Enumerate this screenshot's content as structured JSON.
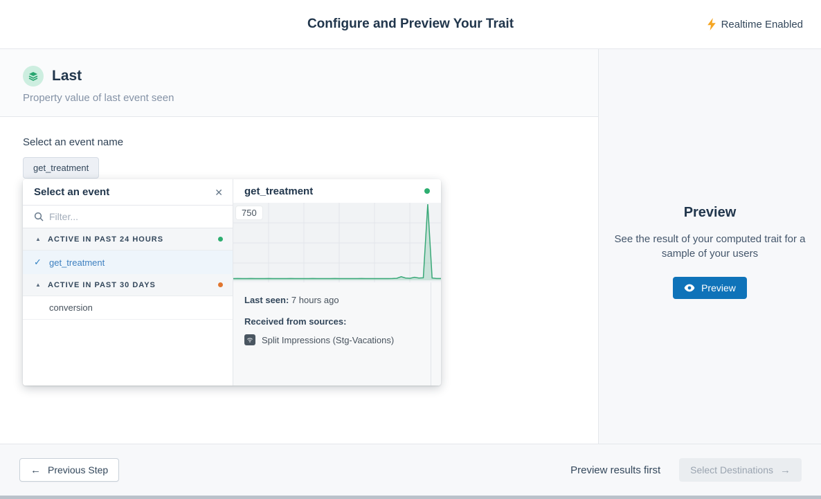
{
  "header": {
    "title": "Configure and Preview Your Trait",
    "realtime_label": "Realtime Enabled"
  },
  "trait": {
    "name": "Last",
    "description": "Property value of last event seen"
  },
  "event_select": {
    "label": "Select an event name",
    "selected_chip": "get_treatment"
  },
  "dropdown": {
    "title": "Select an event",
    "filter_placeholder": "Filter...",
    "groups": [
      {
        "label": "ACTIVE IN PAST 24 HOURS",
        "dot_color": "#2dae70",
        "items": [
          {
            "label": "get_treatment",
            "selected": true
          }
        ]
      },
      {
        "label": "ACTIVE IN PAST 30 DAYS",
        "dot_color": "#e0762f",
        "items": [
          {
            "label": "conversion",
            "selected": false
          }
        ]
      }
    ]
  },
  "detail": {
    "title": "get_treatment",
    "status_dot_color": "#2dae70",
    "y_max_label": "750",
    "last_seen_label": "Last seen:",
    "last_seen_value": " 7 hours ago",
    "sources_label": "Received from sources:",
    "source_name": "Split Impressions (Stg-Vacations)"
  },
  "chart_data": {
    "type": "area",
    "title": "get_treatment recent event volume",
    "series": [
      {
        "name": "get_treatment",
        "values": [
          5,
          6,
          5,
          5,
          6,
          5,
          5,
          5,
          6,
          5,
          5,
          5,
          5,
          6,
          5,
          5,
          5,
          5,
          6,
          5,
          5,
          5,
          5,
          6,
          5,
          5,
          5,
          5,
          5,
          6,
          5,
          5,
          5,
          5,
          5,
          5,
          6,
          8,
          30,
          12,
          8,
          22,
          12,
          15,
          1000,
          12,
          6,
          6
        ]
      }
    ],
    "x_description": "time buckets, oldest to newest (unlabeled axis)",
    "y_ticks": [
      0,
      250,
      500,
      750
    ],
    "y_gridline_label": "750",
    "ylim": [
      0,
      1050
    ],
    "peak_value_estimate": 1000,
    "grid": true,
    "legend": "none",
    "line_color": "#38a877",
    "fill_color": "rgba(56,168,119,0.22)"
  },
  "preview_panel": {
    "title": "Preview",
    "description": "See the result of your computed trait for a sample of your users",
    "button_label": "Preview"
  },
  "footer": {
    "previous_label": "Previous Step",
    "hint": "Preview results first",
    "next_label": "Select Destinations"
  },
  "colors": {
    "accent_blue": "#0f73b9",
    "link_blue": "#3e80c0",
    "status_green": "#2dae70",
    "status_orange": "#e0762f",
    "chart_green": "#38a877",
    "realtime_bolt": "#f5a623",
    "title_navy": "#21364c"
  }
}
